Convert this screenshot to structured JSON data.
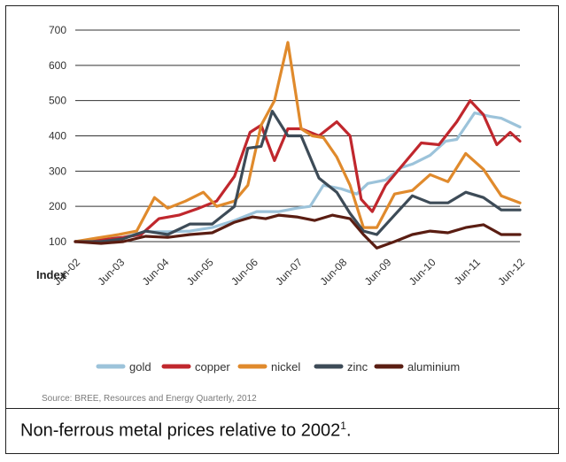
{
  "caption": {
    "text": "Non-ferrous metal prices relative to 2002",
    "superscript": "1",
    "suffix": "."
  },
  "source": "Source: BREE, Resources and Energy Quarterly, 2012",
  "colors": {
    "gold": "#9cc3da",
    "copper": "#c0272d",
    "nickel": "#e08a2c",
    "zinc": "#3d4b57",
    "aluminium": "#5a1d12",
    "grid": "#333333"
  },
  "chart_data": {
    "type": "line",
    "title": "",
    "xlabel": "",
    "ylabel": "Index",
    "ylim": [
      100,
      700
    ],
    "yticks": [
      100,
      200,
      300,
      400,
      500,
      600,
      700
    ],
    "x_range": [
      2002.42,
      2012.42
    ],
    "xtick_labels": [
      "Jun-02",
      "Jun-03",
      "Jun-04",
      "Jun-05",
      "Jun-06",
      "Jun-07",
      "Jun-08",
      "Jun-09",
      "Jun-10",
      "Jun-11",
      "Jun-12"
    ],
    "xtick_values": [
      2002.42,
      2003.42,
      2004.42,
      2005.42,
      2006.42,
      2007.42,
      2008.42,
      2009.42,
      2010.42,
      2011.42,
      2012.42
    ],
    "grid": "horizontal",
    "legend_position": "bottom",
    "series": [
      {
        "name": "gold",
        "colorKey": "gold",
        "x": [
          2002.42,
          2003.0,
          2003.5,
          2004.0,
          2004.5,
          2005.0,
          2005.5,
          2006.0,
          2006.5,
          2007.0,
          2007.4,
          2007.7,
          2008.0,
          2008.4,
          2008.75,
          2009.0,
          2009.4,
          2009.75,
          2010.0,
          2010.4,
          2010.75,
          2011.0,
          2011.4,
          2011.75,
          2012.0,
          2012.42
        ],
        "y": [
          100,
          108,
          112,
          128,
          128,
          130,
          140,
          160,
          185,
          185,
          195,
          200,
          260,
          250,
          235,
          265,
          275,
          310,
          320,
          345,
          385,
          390,
          465,
          455,
          450,
          425
        ]
      },
      {
        "name": "copper",
        "colorKey": "copper",
        "x": [
          2002.42,
          2003.0,
          2003.5,
          2003.9,
          2004.3,
          2004.75,
          2005.2,
          2005.6,
          2006.0,
          2006.35,
          2006.6,
          2006.9,
          2007.2,
          2007.5,
          2007.9,
          2008.3,
          2008.6,
          2008.85,
          2009.1,
          2009.4,
          2009.8,
          2010.2,
          2010.6,
          2011.0,
          2011.3,
          2011.6,
          2011.9,
          2012.2,
          2012.42
        ],
        "y": [
          100,
          105,
          112,
          120,
          165,
          175,
          195,
          215,
          285,
          410,
          430,
          330,
          420,
          420,
          400,
          440,
          400,
          220,
          185,
          260,
          320,
          380,
          375,
          440,
          500,
          460,
          375,
          410,
          385
        ]
      },
      {
        "name": "nickel",
        "colorKey": "nickel",
        "x": [
          2002.42,
          2002.9,
          2003.4,
          2003.8,
          2004.2,
          2004.5,
          2004.9,
          2005.3,
          2005.6,
          2006.0,
          2006.3,
          2006.6,
          2006.9,
          2007.2,
          2007.5,
          2007.75,
          2008.0,
          2008.3,
          2008.6,
          2008.9,
          2009.2,
          2009.6,
          2010.0,
          2010.4,
          2010.8,
          2011.2,
          2011.6,
          2012.0,
          2012.42
        ],
        "y": [
          100,
          110,
          120,
          130,
          225,
          195,
          215,
          240,
          200,
          215,
          260,
          430,
          500,
          665,
          420,
          400,
          395,
          340,
          260,
          140,
          140,
          235,
          245,
          290,
          270,
          350,
          305,
          230,
          210
        ]
      },
      {
        "name": "zinc",
        "colorKey": "zinc",
        "x": [
          2002.42,
          2003.0,
          2003.5,
          2004.0,
          2004.5,
          2005.0,
          2005.5,
          2006.0,
          2006.3,
          2006.6,
          2006.85,
          2007.2,
          2007.5,
          2007.9,
          2008.3,
          2008.6,
          2008.9,
          2009.2,
          2009.6,
          2010.0,
          2010.4,
          2010.8,
          2011.2,
          2011.6,
          2012.0,
          2012.42
        ],
        "y": [
          100,
          100,
          108,
          130,
          120,
          150,
          150,
          200,
          365,
          370,
          470,
          400,
          400,
          280,
          240,
          180,
          130,
          120,
          175,
          230,
          210,
          210,
          240,
          225,
          190,
          190
        ]
      },
      {
        "name": "aluminium",
        "colorKey": "aluminium",
        "x": [
          2002.42,
          2003.0,
          2003.5,
          2004.0,
          2004.5,
          2005.0,
          2005.5,
          2006.0,
          2006.4,
          2006.7,
          2007.0,
          2007.4,
          2007.8,
          2008.2,
          2008.6,
          2008.9,
          2009.2,
          2009.6,
          2010.0,
          2010.4,
          2010.8,
          2011.2,
          2011.6,
          2012.0,
          2012.42
        ],
        "y": [
          100,
          95,
          100,
          115,
          112,
          120,
          125,
          155,
          170,
          165,
          175,
          170,
          160,
          175,
          165,
          120,
          82,
          100,
          120,
          130,
          125,
          140,
          148,
          120,
          120
        ]
      }
    ]
  }
}
